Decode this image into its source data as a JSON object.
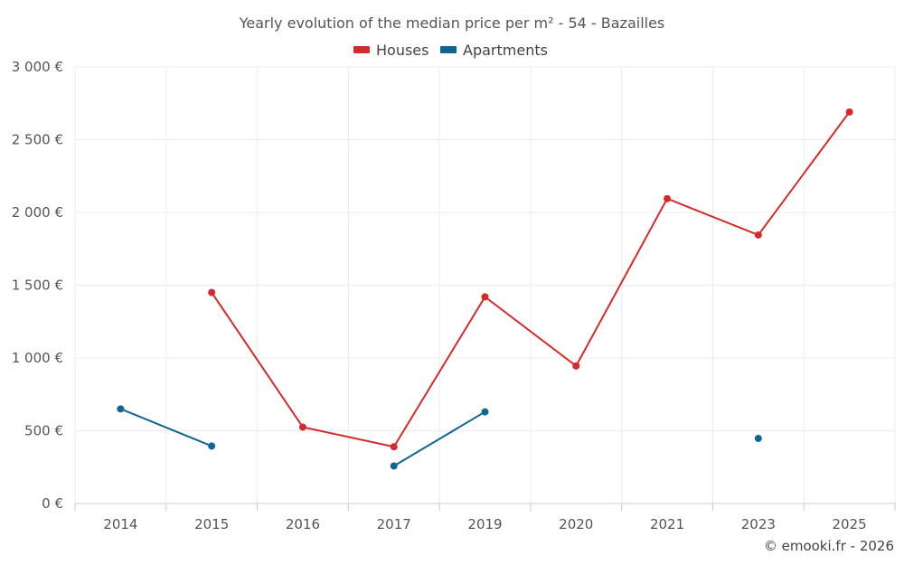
{
  "chart_data": {
    "type": "line",
    "title": "Yearly evolution of the median price per m² - 54 - Bazailles",
    "categories": [
      "2014",
      "2015",
      "2016",
      "2017",
      "2019",
      "2020",
      "2021",
      "2023",
      "2025"
    ],
    "yticks": [
      "0 €",
      "500 €",
      "1 000 €",
      "1 500 €",
      "2 000 €",
      "2 500 €",
      "3 000 €"
    ],
    "ylim": [
      0,
      3000
    ],
    "xlabel": "",
    "ylabel": "",
    "legend_position": "top-center",
    "grid": true,
    "series": [
      {
        "name": "Houses",
        "color": "#d42a2a",
        "values": [
          null,
          1450,
          525,
          390,
          1420,
          945,
          2095,
          1845,
          2690
        ]
      },
      {
        "name": "Apartments",
        "color": "#0e6697",
        "values": [
          650,
          395,
          null,
          258,
          630,
          null,
          null,
          447,
          null
        ]
      }
    ],
    "credit": "© emooki.fr - 2026"
  }
}
